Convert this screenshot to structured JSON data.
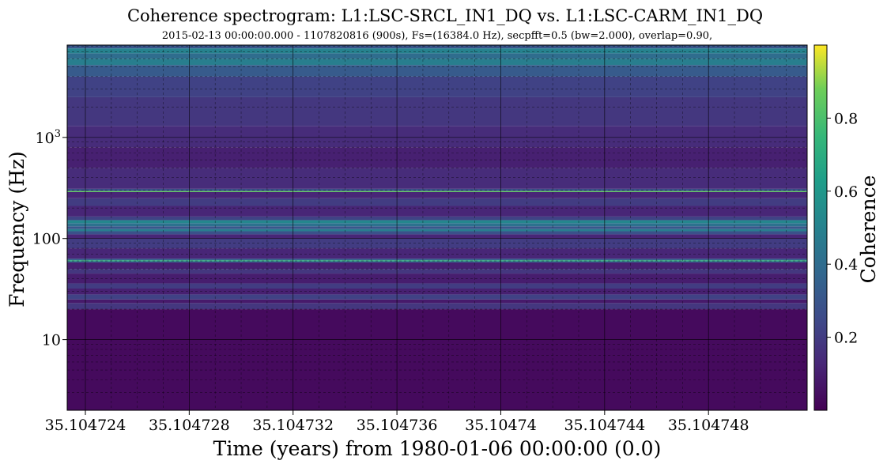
{
  "chart_data": {
    "type": "heatmap",
    "title": "Coherence spectrogram:  L1:LSC-SRCL_IN1_DQ vs.  L1:LSC-CARM_IN1_DQ",
    "subtitle": "2015-02-13  00:00:00.000 - 1107820816  (900s),  Fs=(16384.0 Hz),  secpfft=0.5  (bw=2.000),  overlap=0.90,",
    "xlabel": "Time (years) from 1980-01-06 00:00:00 (0.0)",
    "ylabel": "Frequency (Hz)",
    "colorbar_label": "Coherence",
    "xlim": [
      35.1047233,
      35.1047518
    ],
    "ylim": [
      2,
      8192
    ],
    "yscale": "log",
    "clim": [
      0,
      1
    ],
    "colormap": "viridis",
    "grid": true,
    "x_ticks": [
      {
        "value": 35.104724,
        "label": "35.104724"
      },
      {
        "value": 35.104728,
        "label": "35.104728"
      },
      {
        "value": 35.104732,
        "label": "35.104732"
      },
      {
        "value": 35.104736,
        "label": "35.104736"
      },
      {
        "value": 35.10474,
        "label": "35.10474"
      },
      {
        "value": 35.104744,
        "label": "35.104744"
      },
      {
        "value": 35.104748,
        "label": "35.104748"
      }
    ],
    "y_ticks": [
      {
        "value": 10,
        "label": "10"
      },
      {
        "value": 100,
        "label": "100"
      },
      {
        "value": 1000,
        "label_base": "10",
        "label_exp": "3"
      }
    ],
    "colorbar_ticks": [
      {
        "value": 0.2,
        "label": "0.2"
      },
      {
        "value": 0.4,
        "label": "0.4"
      },
      {
        "value": 0.6,
        "label": "0.6"
      },
      {
        "value": 0.8,
        "label": "0.8"
      }
    ],
    "bands": [
      {
        "f_low": 2,
        "f_high": 20,
        "coherence": 0.03
      },
      {
        "f_low": 20,
        "f_high": 23,
        "coherence": 0.18
      },
      {
        "f_low": 23,
        "f_high": 25,
        "coherence": 0.08
      },
      {
        "f_low": 25,
        "f_high": 28,
        "coherence": 0.22
      },
      {
        "f_low": 28,
        "f_high": 32,
        "coherence": 0.1
      },
      {
        "f_low": 32,
        "f_high": 36,
        "coherence": 0.2
      },
      {
        "f_low": 36,
        "f_high": 45,
        "coherence": 0.09
      },
      {
        "f_low": 45,
        "f_high": 50,
        "coherence": 0.18
      },
      {
        "f_low": 50,
        "f_high": 58,
        "coherence": 0.1
      },
      {
        "f_low": 58,
        "f_high": 59.5,
        "coherence": 0.35
      },
      {
        "f_low": 59.5,
        "f_high": 61,
        "coherence": 0.72
      },
      {
        "f_low": 61,
        "f_high": 63,
        "coherence": 0.35
      },
      {
        "f_low": 63,
        "f_high": 80,
        "coherence": 0.12
      },
      {
        "f_low": 80,
        "f_high": 100,
        "coherence": 0.2
      },
      {
        "f_low": 100,
        "f_high": 110,
        "coherence": 0.12
      },
      {
        "f_low": 110,
        "f_high": 118,
        "coherence": 0.28
      },
      {
        "f_low": 118,
        "f_high": 124,
        "coherence": 0.48
      },
      {
        "f_low": 124,
        "f_high": 132,
        "coherence": 0.3
      },
      {
        "f_low": 132,
        "f_high": 142,
        "coherence": 0.42
      },
      {
        "f_low": 142,
        "f_high": 152,
        "coherence": 0.52
      },
      {
        "f_low": 152,
        "f_high": 165,
        "coherence": 0.22
      },
      {
        "f_low": 165,
        "f_high": 210,
        "coherence": 0.12
      },
      {
        "f_low": 210,
        "f_high": 250,
        "coherence": 0.2
      },
      {
        "f_low": 250,
        "f_high": 288,
        "coherence": 0.12
      },
      {
        "f_low": 288,
        "f_high": 295,
        "coherence": 0.85
      },
      {
        "f_low": 295,
        "f_high": 310,
        "coherence": 0.28
      },
      {
        "f_low": 310,
        "f_high": 500,
        "coherence": 0.14
      },
      {
        "f_low": 500,
        "f_high": 800,
        "coherence": 0.1
      },
      {
        "f_low": 800,
        "f_high": 1300,
        "coherence": 0.14
      },
      {
        "f_low": 1300,
        "f_high": 2500,
        "coherence": 0.18
      },
      {
        "f_low": 2500,
        "f_high": 4000,
        "coherence": 0.22
      },
      {
        "f_low": 4000,
        "f_high": 5200,
        "coherence": 0.32
      },
      {
        "f_low": 5200,
        "f_high": 6000,
        "coherence": 0.48
      },
      {
        "f_low": 6000,
        "f_high": 6800,
        "coherence": 0.4
      },
      {
        "f_low": 6800,
        "f_high": 7600,
        "coherence": 0.5
      },
      {
        "f_low": 7600,
        "f_high": 8192,
        "coherence": 0.3
      }
    ]
  }
}
